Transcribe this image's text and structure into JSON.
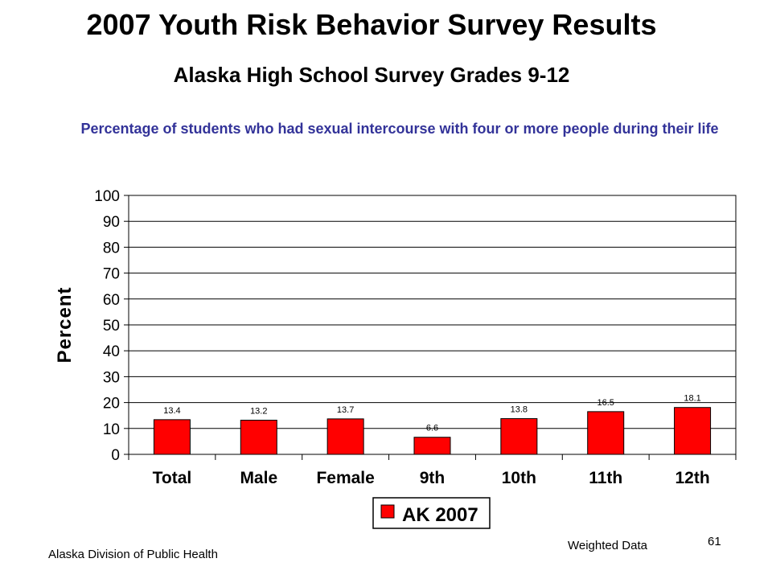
{
  "slide": {
    "title": "2007 Youth Risk Behavior Survey Results",
    "subtitle": "Alaska High School Survey Grades 9-12",
    "footer_left": "Alaska Division of Public Health",
    "footer_right": "Weighted Data",
    "page_number": "61"
  },
  "chart_data": {
    "type": "bar",
    "title": "Percentage of students who had sexual intercourse with four or more people during their life",
    "ylabel": "Percent",
    "xlabel": "",
    "ylim": [
      0,
      100
    ],
    "yticks": [
      0,
      10,
      20,
      30,
      40,
      50,
      60,
      70,
      80,
      90,
      100
    ],
    "categories": [
      "Total",
      "Male",
      "Female",
      "9th",
      "10th",
      "11th",
      "12th"
    ],
    "series": [
      {
        "name": "AK 2007",
        "color": "#ff0000",
        "values": [
          13.4,
          13.2,
          13.7,
          6.6,
          13.8,
          16.5,
          18.1
        ]
      }
    ],
    "grid": true,
    "legend": "bottom"
  }
}
